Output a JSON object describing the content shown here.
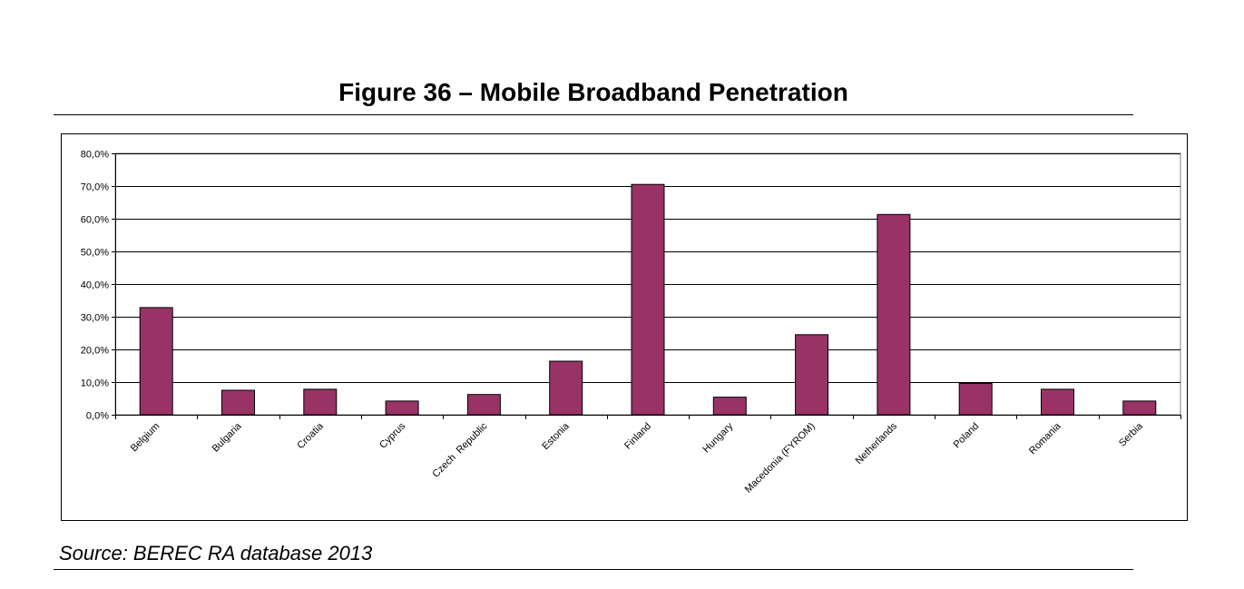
{
  "figure": {
    "title": "Figure 36 – Mobile Broadband Penetration",
    "source": "Source: BEREC RA database 2013"
  },
  "chart_data": {
    "type": "bar",
    "title": "",
    "xlabel": "",
    "ylabel": "",
    "categories": [
      "Belgium",
      "Bulgaria",
      "Croatia",
      "Cyprus",
      "Czech  Republic",
      "Estonia",
      "Finland",
      "Hungary",
      "Macedonia (FYROM)",
      "Netherlands",
      "Poland",
      "Romania",
      "Serbia"
    ],
    "values": [
      32.8,
      7.5,
      7.8,
      4.2,
      6.2,
      16.4,
      70.5,
      5.4,
      24.5,
      61.3,
      9.6,
      7.8,
      4.2
    ],
    "ylim": [
      0,
      80
    ],
    "yticks": [
      0,
      10,
      20,
      30,
      40,
      50,
      60,
      70,
      80
    ],
    "ytick_labels": [
      "0,0%",
      "10,0%",
      "20,0%",
      "30,0%",
      "40,0%",
      "50,0%",
      "60,0%",
      "70,0%",
      "80,0%"
    ],
    "grid": true,
    "legend": "none",
    "bar_color": "#993366"
  }
}
